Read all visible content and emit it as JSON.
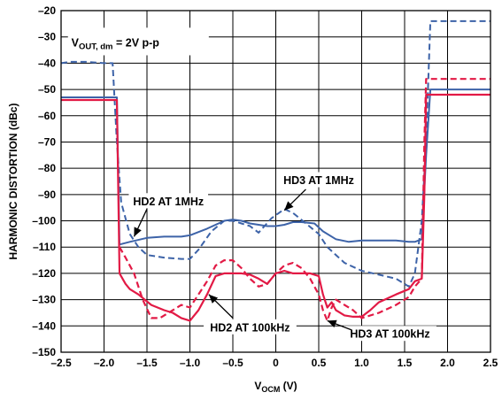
{
  "chart_data": {
    "type": "line",
    "title": "",
    "xlabel": "V",
    "xlabel_sub": "OCM",
    "xlabel_suffix": " (V)",
    "ylabel": "HARMONIC DISTORTION (dBc)",
    "xlim": [
      -2.5,
      2.5
    ],
    "ylim": [
      -150,
      -20
    ],
    "xticks": [
      -2.5,
      -2.0,
      -1.5,
      -1.0,
      -0.5,
      0,
      0.5,
      1.0,
      1.5,
      2.0,
      2.5
    ],
    "xtick_labels": [
      "–2.5",
      "–2.0",
      "–1.5",
      "–1.0",
      "–0.5",
      "0",
      "0.5",
      "1.0",
      "1.5",
      "2.0",
      "2.5"
    ],
    "yticks": [
      -20,
      -30,
      -40,
      -50,
      -60,
      -70,
      -80,
      -90,
      -100,
      -110,
      -120,
      -130,
      -140,
      -150
    ],
    "ytick_labels": [
      "–20",
      "–30",
      "–40",
      "–50",
      "–60",
      "–70",
      "–80",
      "–90",
      "–100",
      "–110",
      "–120",
      "–130",
      "–140",
      "–150"
    ],
    "grid": true,
    "inset_label": {
      "main": "V",
      "sub": "OUT, dm",
      "rest": " = 2V p-p"
    },
    "colors": {
      "blue": "#3d63a8",
      "red": "#e21a45"
    },
    "series": [
      {
        "name": "HD2 AT 1MHz",
        "color": "#3d63a8",
        "dash": false,
        "x": [
          -2.5,
          -1.9,
          -1.85,
          -1.82,
          -1.7,
          -1.5,
          -1.3,
          -1.1,
          -1.0,
          -0.8,
          -0.6,
          -0.5,
          -0.4,
          -0.3,
          -0.1,
          0.0,
          0.1,
          0.2,
          0.3,
          0.45,
          0.55,
          0.7,
          0.85,
          1.0,
          1.2,
          1.4,
          1.55,
          1.62,
          1.7,
          1.75,
          1.8,
          2.5
        ],
        "y": [
          -53,
          -53,
          -53,
          -109,
          -108,
          -106.5,
          -106,
          -106,
          -105.5,
          -103,
          -100,
          -99.5,
          -100,
          -101,
          -102,
          -102,
          -101.5,
          -100.5,
          -100.5,
          -101,
          -104,
          -107,
          -108,
          -107.5,
          -107.5,
          -107.5,
          -108,
          -108,
          -107,
          -75,
          -50,
          -50
        ]
      },
      {
        "name": "HD3 AT 1MHz",
        "color": "#3d63a8",
        "dash": true,
        "x": [
          -2.5,
          -2.4,
          -2.2,
          -2.0,
          -1.9,
          -1.85,
          -1.8,
          -1.7,
          -1.6,
          -1.5,
          -1.3,
          -1.1,
          -1.0,
          -0.9,
          -0.75,
          -0.6,
          -0.5,
          -0.4,
          -0.3,
          -0.2,
          -0.05,
          0.1,
          0.2,
          0.35,
          0.5,
          0.6,
          0.8,
          1.0,
          1.2,
          1.4,
          1.55,
          1.62,
          1.7,
          1.75,
          1.8,
          2.5
        ],
        "y": [
          -40,
          -39.5,
          -39.5,
          -40,
          -40,
          -70,
          -93,
          -105,
          -110,
          -113,
          -114,
          -114.5,
          -114.5,
          -111,
          -104,
          -100,
          -100,
          -101,
          -102,
          -104.5,
          -99,
          -95.5,
          -97,
          -101,
          -105,
          -110,
          -116,
          -119,
          -120.5,
          -122,
          -125,
          -120,
          -100,
          -70,
          -24,
          -24
        ]
      },
      {
        "name": "HD2 AT 100kHz",
        "color": "#e21a45",
        "dash": false,
        "x": [
          -2.5,
          -1.9,
          -1.85,
          -1.82,
          -1.75,
          -1.7,
          -1.6,
          -1.45,
          -1.3,
          -1.2,
          -1.1,
          -1.0,
          -0.9,
          -0.8,
          -0.7,
          -0.6,
          -0.5,
          -0.4,
          -0.3,
          -0.2,
          -0.1,
          0.0,
          0.1,
          0.2,
          0.3,
          0.4,
          0.5,
          0.55,
          0.6,
          0.65,
          0.7,
          0.8,
          0.9,
          1.0,
          1.1,
          1.2,
          1.4,
          1.55,
          1.62,
          1.7,
          1.73,
          1.75,
          2.5
        ],
        "y": [
          -54,
          -54,
          -54,
          -120,
          -124,
          -126,
          -128,
          -132,
          -134,
          -135,
          -137,
          -138,
          -134,
          -128,
          -121,
          -120,
          -120,
          -120,
          -120.5,
          -122,
          -124,
          -120,
          -119,
          -120,
          -120,
          -120,
          -121,
          -128,
          -133,
          -131,
          -134,
          -136,
          -136.5,
          -136.5,
          -134,
          -131,
          -128,
          -126,
          -123,
          -122,
          -90,
          -52,
          -52
        ]
      },
      {
        "name": "HD3 AT 100kHz",
        "color": "#e21a45",
        "dash": true,
        "x": [
          -1.82,
          -1.75,
          -1.65,
          -1.55,
          -1.45,
          -1.35,
          -1.2,
          -1.1,
          -1.0,
          -0.9,
          -0.8,
          -0.7,
          -0.6,
          -0.5,
          -0.4,
          -0.3,
          -0.2,
          -0.1,
          0.0,
          0.1,
          0.2,
          0.3,
          0.4,
          0.5,
          0.55,
          0.6,
          0.65,
          0.7,
          0.8,
          0.9,
          1.0,
          1.2,
          1.4,
          1.55,
          1.62,
          1.7,
          1.73,
          1.75,
          2.5
        ],
        "y": [
          -110,
          -114,
          -120,
          -130,
          -137,
          -137,
          -134,
          -132,
          -133,
          -128,
          -123,
          -117,
          -115,
          -115,
          -118,
          -122,
          -125,
          -124,
          -120,
          -117,
          -116,
          -118,
          -122,
          -128,
          -134,
          -138,
          -133,
          -130,
          -132,
          -134,
          -137,
          -135,
          -132,
          -129,
          -125,
          -122,
          -70,
          -46,
          -46
        ]
      }
    ],
    "annotations": [
      {
        "text": "HD2 AT 1MHz",
        "x": -1.25,
        "y": -92.5,
        "anchor": "middle",
        "box": true,
        "arrow": [
          [
            -1.5,
            -95.5
          ],
          [
            -1.65,
            -106
          ]
        ]
      },
      {
        "text": "HD3 AT 1MHz",
        "x": 0.5,
        "y": -84.5,
        "anchor": "middle",
        "box": true,
        "arrow": [
          [
            0.35,
            -88
          ],
          [
            0.1,
            -96
          ]
        ]
      },
      {
        "text": "HD2 AT 100kHz",
        "x": -0.3,
        "y": -140.5,
        "anchor": "middle",
        "box": true,
        "arrow": [
          [
            -0.5,
            -137
          ],
          [
            -0.78,
            -128
          ]
        ]
      },
      {
        "text": "HD3 AT 100kHz",
        "x": 1.33,
        "y": -143,
        "anchor": "middle",
        "box": true,
        "arrow": [
          [
            0.88,
            -141.5
          ],
          [
            0.6,
            -138
          ]
        ]
      }
    ]
  }
}
